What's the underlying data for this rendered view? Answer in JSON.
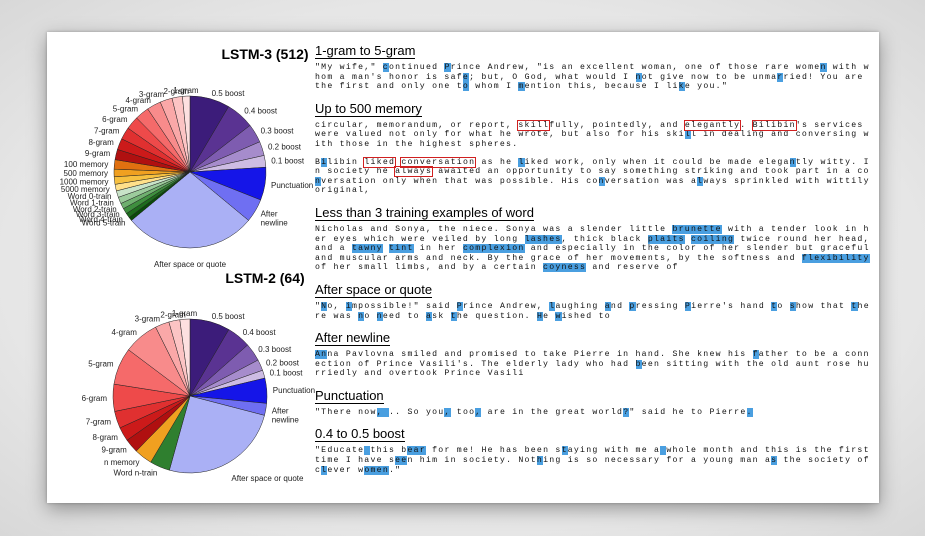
{
  "charts": [
    {
      "title": "LSTM-3 (512)",
      "slices": [
        {
          "label": "0.5 boost",
          "value": 8.5,
          "color": "#3c1c7a"
        },
        {
          "label": "0.4 boost",
          "value": 6,
          "color": "#5a3392"
        },
        {
          "label": "0.3 boost",
          "value": 4,
          "color": "#7e5cb0"
        },
        {
          "label": "0.2 boost",
          "value": 3,
          "color": "#a68ccc"
        },
        {
          "label": "0.1 boost",
          "value": 2.5,
          "color": "#cdbce3"
        },
        {
          "label": "Punctuation",
          "value": 7,
          "color": "#1515e8"
        },
        {
          "label": "After newline",
          "value": 5,
          "color": "#6f6ff2"
        },
        {
          "label": "After space or quote",
          "value": 28,
          "color": "#aab0f5"
        },
        {
          "label": "Word 5-train",
          "value": 0.8,
          "color": "#0a4a0a"
        },
        {
          "label": "Word 4-train",
          "value": 1,
          "color": "#1d6b1d"
        },
        {
          "label": "Word 3-train",
          "value": 1.2,
          "color": "#3f8f3f"
        },
        {
          "label": "Word 2-train",
          "value": 1.2,
          "color": "#6fb06f"
        },
        {
          "label": "Word 1-train",
          "value": 1.4,
          "color": "#9ccb9c"
        },
        {
          "label": "Word 0-train",
          "value": 1.4,
          "color": "#c8e3c8"
        },
        {
          "label": "5000 memory",
          "value": 1.4,
          "color": "#ffe08a"
        },
        {
          "label": "1000 memory",
          "value": 1.6,
          "color": "#f6c040"
        },
        {
          "label": "500 memory",
          "value": 1.6,
          "color": "#f0a020"
        },
        {
          "label": "100 memory",
          "value": 2,
          "color": "#e07010"
        },
        {
          "label": "9-gram",
          "value": 2.2,
          "color": "#b01010"
        },
        {
          "label": "8-gram",
          "value": 2.4,
          "color": "#cc1a1a"
        },
        {
          "label": "7-gram",
          "value": 2.6,
          "color": "#e03030"
        },
        {
          "label": "6-gram",
          "value": 2.8,
          "color": "#ee4a4a"
        },
        {
          "label": "5-gram",
          "value": 3,
          "color": "#f56a6a"
        },
        {
          "label": "4-gram",
          "value": 3,
          "color": "#f88b8b"
        },
        {
          "label": "3-gram",
          "value": 2.6,
          "color": "#faa8a8"
        },
        {
          "label": "2-gram",
          "value": 2.2,
          "color": "#fcc4c4"
        },
        {
          "label": "1-gram",
          "value": 1.6,
          "color": "#fde0e0"
        }
      ]
    },
    {
      "title": "LSTM-2 (64)",
      "slices": [
        {
          "label": "0.5 boost",
          "value": 8,
          "color": "#3c1c7a"
        },
        {
          "label": "0.4 boost",
          "value": 4.8,
          "color": "#5a3392"
        },
        {
          "label": "0.3 boost",
          "value": 3.6,
          "color": "#7e5cb0"
        },
        {
          "label": "0.2 boost",
          "value": 2.2,
          "color": "#a68ccc"
        },
        {
          "label": "0.1 boost",
          "value": 1.6,
          "color": "#cdbce3"
        },
        {
          "label": "Punctuation",
          "value": 5,
          "color": "#1515e8"
        },
        {
          "label": "After newline",
          "value": 2.4,
          "color": "#6f6ff2"
        },
        {
          "label": "After space or quote",
          "value": 24,
          "color": "#aab0f5"
        },
        {
          "label": "Word n-train",
          "value": 4,
          "color": "#2f7f2f"
        },
        {
          "label": "n memory",
          "value": 3.6,
          "color": "#f0a020"
        },
        {
          "label": "9-gram",
          "value": 2.8,
          "color": "#b01010"
        },
        {
          "label": "8-gram",
          "value": 2.8,
          "color": "#cc1a1a"
        },
        {
          "label": "7-gram",
          "value": 3.4,
          "color": "#e03030"
        },
        {
          "label": "6-gram",
          "value": 5.4,
          "color": "#ee4a4a"
        },
        {
          "label": "5-gram",
          "value": 7.4,
          "color": "#f56a6a"
        },
        {
          "label": "4-gram",
          "value": 7,
          "color": "#f88b8b"
        },
        {
          "label": "3-gram",
          "value": 2.8,
          "color": "#faa8a8"
        },
        {
          "label": "2-gram",
          "value": 2.2,
          "color": "#fcc4c4"
        },
        {
          "label": "1-gram",
          "value": 2,
          "color": "#fde0e0"
        }
      ]
    }
  ],
  "sections": [
    {
      "title": "1-gram to 5-gram",
      "paragraphs": [
        [
          {
            "t": "\"My wife,\" "
          },
          {
            "t": "c",
            "h": 1
          },
          {
            "t": "ontinued "
          },
          {
            "t": "P",
            "h": 1
          },
          {
            "t": "rince Andrew, \"is an excellent woman, one of those rare wome"
          },
          {
            "t": "n",
            "h": 1
          },
          {
            "t": " with whom a man's honor is saf"
          },
          {
            "t": "e",
            "h": 1
          },
          {
            "t": "; but, O God, what would I "
          },
          {
            "t": "n",
            "h": 1
          },
          {
            "t": "ot give now to be unma"
          },
          {
            "t": "r",
            "h": 1
          },
          {
            "t": "ried! You are the first and only one t"
          },
          {
            "t": "o",
            "h": 1
          },
          {
            "t": " whom I "
          },
          {
            "t": "m",
            "h": 1
          },
          {
            "t": "ention this, because I li"
          },
          {
            "t": "k",
            "h": 1
          },
          {
            "t": "e you.\""
          }
        ]
      ]
    },
    {
      "title": "Up to 500 memory",
      "paragraphs": [
        [
          {
            "t": "circular, memorandum, or report, "
          },
          {
            "t": "skill",
            "b": 1
          },
          {
            "t": "fully, pointedly, and "
          },
          {
            "t": "elegantly",
            "b": 1
          },
          {
            "t": ". "
          },
          {
            "t": "Bilibin",
            "b": 1
          },
          {
            "t": "'s services were valued not only for what he wrote, but also for his ski"
          },
          {
            "t": "l",
            "h": 1
          },
          {
            "t": "l in dealing and conversing with those in the highest spheres."
          }
        ],
        [
          {
            "t": "B"
          },
          {
            "t": "i",
            "h": 1
          },
          {
            "t": "libin "
          },
          {
            "t": "liked",
            "b": 1
          },
          {
            "t": " "
          },
          {
            "t": "conversation",
            "b": 1
          },
          {
            "t": " as he "
          },
          {
            "t": "l",
            "h": 1
          },
          {
            "t": "iked work, only when it could be made elega"
          },
          {
            "t": "n",
            "h": 1
          },
          {
            "t": "tly witty. In society he "
          },
          {
            "t": "always",
            "b": 1
          },
          {
            "t": " awaited an opportunity to say something striking and took part in a co"
          },
          {
            "t": "n",
            "h": 1
          },
          {
            "t": "versation only when that was possible. His co"
          },
          {
            "t": "n",
            "h": 1
          },
          {
            "t": "versation was a"
          },
          {
            "t": "l",
            "h": 1
          },
          {
            "t": "ways sprinkled with wittily original,"
          }
        ]
      ]
    },
    {
      "title": "Less than 3 training examples of word",
      "paragraphs": [
        [
          {
            "t": "Nicholas and Sonya, the niece. Sonya was a slender little "
          },
          {
            "t": "brunette",
            "h": 1
          },
          {
            "t": " with a tender look in her eyes which were veiled by long "
          },
          {
            "t": "lashes",
            "h": 1
          },
          {
            "t": ", thick black "
          },
          {
            "t": "plaits",
            "h": 1
          },
          {
            "t": " "
          },
          {
            "t": "coiling",
            "h": 1
          },
          {
            "t": " twice round her head, and a "
          },
          {
            "t": "tawny",
            "h": 1
          },
          {
            "t": " "
          },
          {
            "t": "tint",
            "h": 1
          },
          {
            "t": " in her "
          },
          {
            "t": "complexion",
            "h": 1
          },
          {
            "t": " and especially in the color of her slender but graceful and muscular arms and neck. By the grace of her movements, by the softness and "
          },
          {
            "t": "flexibility",
            "h": 1
          },
          {
            "t": " of her small limbs, and by a certain "
          },
          {
            "t": "coyness",
            "h": 1
          },
          {
            "t": " and reserve of"
          }
        ]
      ]
    },
    {
      "title": "After space or quote",
      "paragraphs": [
        [
          {
            "t": "\""
          },
          {
            "t": "N",
            "h": 1
          },
          {
            "t": "o, "
          },
          {
            "t": "i",
            "h": 1
          },
          {
            "t": "mpossible!\" said "
          },
          {
            "t": "P",
            "h": 1
          },
          {
            "t": "rince Andrew, "
          },
          {
            "t": "l",
            "h": 1
          },
          {
            "t": "aughing "
          },
          {
            "t": "a",
            "h": 1
          },
          {
            "t": "nd "
          },
          {
            "t": "p",
            "h": 1
          },
          {
            "t": "ressing "
          },
          {
            "t": "P",
            "h": 1
          },
          {
            "t": "ierre's hand "
          },
          {
            "t": "t",
            "h": 1
          },
          {
            "t": "o "
          },
          {
            "t": "s",
            "h": 1
          },
          {
            "t": "how that "
          },
          {
            "t": "t",
            "h": 1
          },
          {
            "t": "here was "
          },
          {
            "t": "n",
            "h": 1
          },
          {
            "t": "o "
          },
          {
            "t": "n",
            "h": 1
          },
          {
            "t": "eed to "
          },
          {
            "t": "a",
            "h": 1
          },
          {
            "t": "sk "
          },
          {
            "t": "t",
            "h": 1
          },
          {
            "t": "he question. "
          },
          {
            "t": "H",
            "h": 1
          },
          {
            "t": "e "
          },
          {
            "t": "w",
            "h": 1
          },
          {
            "t": "ished to"
          }
        ]
      ]
    },
    {
      "title": "After newline",
      "paragraphs": [
        [
          {
            "t": "An",
            "h": 1
          },
          {
            "t": "na Pavlovna smiled and promised to take Pierre in hand. She knew his "
          },
          {
            "t": "f",
            "h": 1
          },
          {
            "t": "ather to be a connection of Prince Vasili's. The elderly lady who had "
          },
          {
            "t": "b",
            "h": 1
          },
          {
            "t": "een sitting with the old aunt rose hurriedly and overtook Prince Vasili"
          }
        ]
      ]
    },
    {
      "title": "Punctuation",
      "paragraphs": [
        [
          {
            "t": "\"There now"
          },
          {
            "t": ", ",
            "h": 1
          },
          {
            "t": ".. So you"
          },
          {
            "t": ",",
            "h": 1
          },
          {
            "t": " too"
          },
          {
            "t": ",",
            "h": 1
          },
          {
            "t": " are in the great world"
          },
          {
            "t": "?",
            "h": 1
          },
          {
            "t": "\" said he to Pierre"
          },
          {
            "t": ".",
            "h": 1
          }
        ]
      ]
    },
    {
      "title": "0.4 to 0.5 boost",
      "paragraphs": [
        [
          {
            "t": "\"Educate"
          },
          {
            "t": " ",
            "h": 1
          },
          {
            "t": "this b"
          },
          {
            "t": "ear",
            "h": 1
          },
          {
            "t": " for me! He has been s"
          },
          {
            "t": "t",
            "h": 1
          },
          {
            "t": "aying with me a"
          },
          {
            "t": " ",
            "h": 1
          },
          {
            "t": "whole month and this is the first time I have s"
          },
          {
            "t": "ee",
            "h": 1
          },
          {
            "t": "n him in society. Not"
          },
          {
            "t": "h",
            "h": 1
          },
          {
            "t": "ing is so necessary for a young man a"
          },
          {
            "t": "s",
            "h": 1
          },
          {
            "t": " the society of c"
          },
          {
            "t": "l",
            "h": 1
          },
          {
            "t": "ever w"
          },
          {
            "t": "omen",
            "h": 1
          },
          {
            "t": ".\""
          }
        ]
      ]
    }
  ]
}
